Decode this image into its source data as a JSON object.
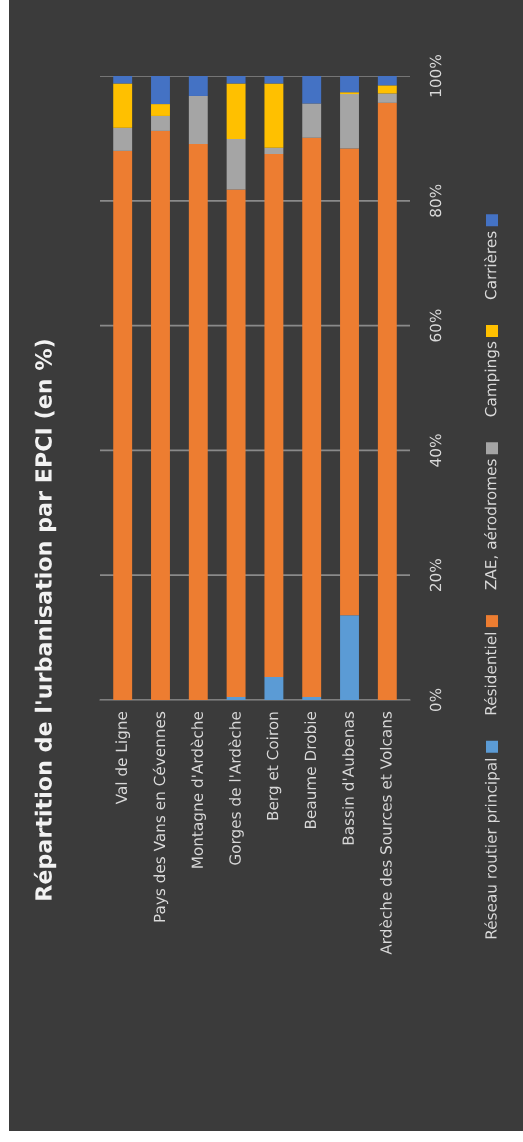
{
  "chart_data": {
    "type": "bar",
    "stacked": true,
    "title": "Répartition de l'urbanisation par EPCI (en %)",
    "categories": [
      "Val de Ligne",
      "Pays des Vans en Cévennes",
      "Montagne d'Ardèche",
      "Gorges de l'Ardèche",
      "Berg et Coiron",
      "Beaume Drobie",
      "Bassin d'Aubenas",
      "Ardèche des Sources et Volcans"
    ],
    "series": [
      {
        "name": "Réseau routier principal",
        "color": "#5b9bd5",
        "values": [
          0,
          0,
          0,
          0.5,
          3.7,
          0.5,
          13.6,
          0
        ]
      },
      {
        "name": "Résidentiel",
        "color": "#ed7d31",
        "values": [
          88,
          91.2,
          89.1,
          81.3,
          83.8,
          89.6,
          74.8,
          95.7
        ]
      },
      {
        "name": "ZAE, aérodromes",
        "color": "#a5a5a5",
        "values": [
          3.7,
          2.4,
          7.7,
          8.1,
          1.0,
          5.5,
          8.7,
          1.5
        ]
      },
      {
        "name": "Campings",
        "color": "#ffc000",
        "values": [
          7.1,
          1.9,
          0,
          8.9,
          10.3,
          0,
          0.3,
          1.3
        ]
      },
      {
        "name": "Carrières",
        "color": "#4472c4",
        "values": [
          1.2,
          4.5,
          3.2,
          1.2,
          1.2,
          4.4,
          2.6,
          1.5
        ]
      }
    ],
    "ylim": [
      0,
      100
    ],
    "yticks": [
      {
        "value": 0,
        "label": "0%"
      },
      {
        "value": 20,
        "label": "20%"
      },
      {
        "value": 40,
        "label": "40%"
      },
      {
        "value": 60,
        "label": "60%"
      },
      {
        "value": 80,
        "label": "80%"
      },
      {
        "value": 100,
        "label": "100%"
      }
    ],
    "grid": "y",
    "legend": "right"
  }
}
